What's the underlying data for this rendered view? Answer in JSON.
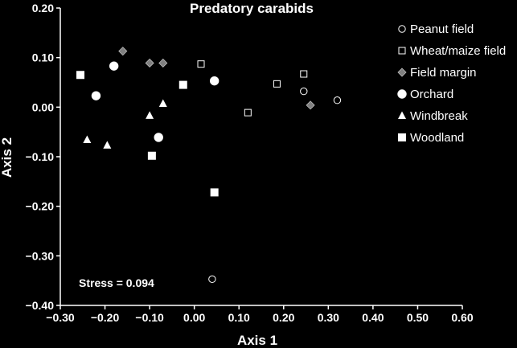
{
  "chart_data": {
    "type": "scatter",
    "title": "Predatory carabids",
    "xlabel": "Axis 1",
    "ylabel": "Axis 2",
    "xlim": [
      -0.3,
      0.6
    ],
    "ylim": [
      -0.4,
      0.2
    ],
    "xticks": [
      "−0.30",
      "−0.20",
      "−0.10",
      "0.00",
      "0.10",
      "0.20",
      "0.30",
      "0.40",
      "0.50",
      "0.60"
    ],
    "yticks": [
      "0.20",
      "0.10",
      "0.00",
      "−0.10",
      "−0.20",
      "−0.30",
      "−0.40"
    ],
    "grid": false,
    "legend_position": "top-right",
    "annotation": "Stress = 0.094",
    "colors": {
      "background": "#000000",
      "foreground": "#ffffff",
      "margin_fill": "#808080"
    },
    "series": [
      {
        "name": "Peanut field",
        "marker": "open-circle",
        "x": [
          0.245,
          0.32,
          0.04
        ],
        "y": [
          0.032,
          0.014,
          -0.347
        ]
      },
      {
        "name": "Wheat/maize field",
        "marker": "open-square",
        "x": [
          0.015,
          0.12,
          0.185,
          0.245
        ],
        "y": [
          0.087,
          -0.011,
          0.047,
          0.067
        ]
      },
      {
        "name": "Field margin",
        "marker": "gray-diamond",
        "x": [
          -0.16,
          -0.1,
          -0.07,
          0.26
        ],
        "y": [
          0.113,
          0.089,
          0.089,
          0.004
        ]
      },
      {
        "name": "Orchard",
        "marker": "filled-circle",
        "x": [
          -0.18,
          -0.22,
          0.045,
          -0.08
        ],
        "y": [
          0.083,
          0.023,
          0.053,
          -0.061
        ]
      },
      {
        "name": "Windbreak",
        "marker": "filled-triangle",
        "x": [
          -0.24,
          -0.195,
          -0.1,
          -0.07
        ],
        "y": [
          -0.066,
          -0.077,
          -0.017,
          0.007
        ]
      },
      {
        "name": "Woodland",
        "marker": "filled-square",
        "x": [
          -0.255,
          -0.025,
          -0.095,
          0.045
        ],
        "y": [
          0.065,
          0.045,
          -0.098,
          -0.172
        ]
      }
    ]
  }
}
